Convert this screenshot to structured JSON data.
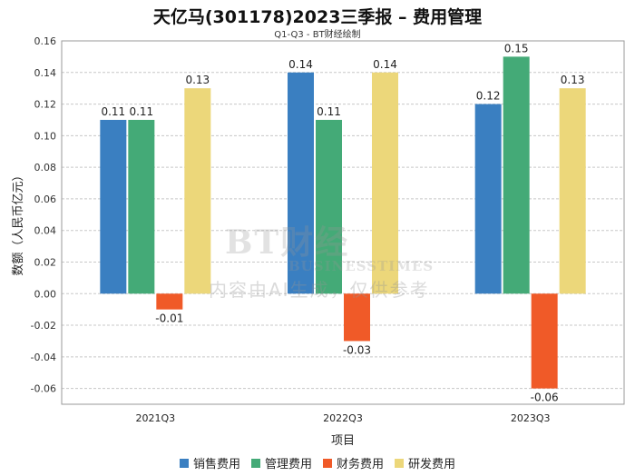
{
  "title": "天亿马(301178)2023三季报 – 费用管理",
  "subtitle": "Q1-Q3 - BT财经绘制",
  "watermark": {
    "logo_main": "BT财经",
    "logo_sub": "BUSINESSTIMES",
    "text": "内容由AI生成，仅供参考"
  },
  "colors": {
    "销售费用": "#3a7fc1",
    "管理费用": "#44aa77",
    "财务费用": "#f05a28",
    "研发费用": "#ecd77a"
  },
  "chart_data": {
    "type": "bar",
    "title": "天亿马(301178)2023三季报 – 费用管理",
    "xlabel": "项目",
    "ylabel": "数额（人民币亿元）",
    "ylim": [
      -0.07,
      0.16
    ],
    "yticks": [
      "0.16",
      "0.14",
      "0.12",
      "0.10",
      "0.08",
      "0.06",
      "0.04",
      "0.02",
      "0.00",
      "-0.02",
      "-0.04",
      "-0.06"
    ],
    "grid": true,
    "legend_position": "bottom",
    "categories": [
      "2021Q3",
      "2022Q3",
      "2023Q3"
    ],
    "series": [
      {
        "name": "销售费用",
        "values": [
          0.11,
          0.14,
          0.12
        ],
        "labels": [
          "0.11",
          "0.14",
          "0.12"
        ]
      },
      {
        "name": "管理费用",
        "values": [
          0.11,
          0.11,
          0.15
        ],
        "labels": [
          "0.11",
          "0.11",
          "0.15"
        ]
      },
      {
        "name": "财务费用",
        "values": [
          -0.01,
          -0.03,
          -0.06
        ],
        "labels": [
          "-0.01",
          "-0.03",
          "-0.06"
        ]
      },
      {
        "name": "研发费用",
        "values": [
          0.13,
          0.14,
          0.13
        ],
        "labels": [
          "0.13",
          "0.14",
          "0.13"
        ]
      }
    ]
  }
}
